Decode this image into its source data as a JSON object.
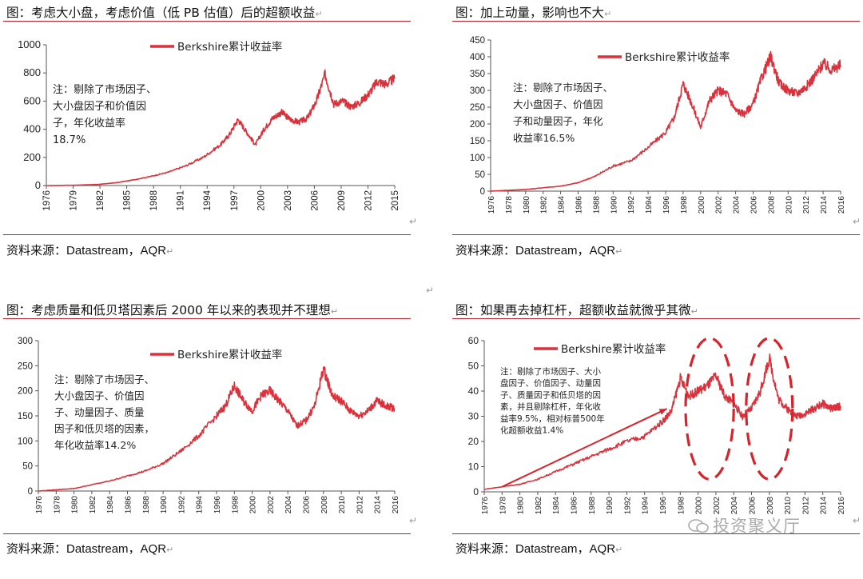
{
  "panels": [
    {
      "title": "图：考虑大小盘，考虑价值（低 PB 估值）后的超额收益",
      "legend": "Berkshire累计收益率",
      "note": [
        "注：剔除了市场因子、",
        "大小盘因子和价值因",
        "子，年化收益率",
        "18.7%"
      ],
      "source": "资料来源：Datastream，AQR"
    },
    {
      "title": "图：加上动量，影响也不大",
      "legend": "Berkshire累计收益率",
      "note": [
        "注：剔除了市场因子、",
        "大小盘因子、价值因",
        "子和动量因子，年化",
        "收益率16.5%"
      ],
      "source": "资料来源：Datastream，AQR"
    },
    {
      "title": "图：考虑质量和低贝塔因素后 2000 年以来的表现并不理想",
      "legend": "Berkshire累计收益率",
      "note": [
        "注：剔除了市场因子、",
        "大小盘因子、价值因",
        "子、动量因子、质量",
        "因子和低贝塔的因素，",
        "年化收益率14.2%"
      ],
      "source": "资料来源：Datastream，AQR"
    },
    {
      "title": "图：如果再去掉杠杆，超额收益就微乎其微",
      "legend": "Berkshire累计收益率",
      "note": [
        "注：剔除了市场因子、大小",
        "盘因子、价值因子、动量因",
        "子、质量因子和低贝塔的因",
        "素，并且剔除杠杆，年化收",
        "益率9.5%，相对标普500年",
        "化超额收益1.4%"
      ],
      "source": "资料来源：Datastream，AQR"
    }
  ],
  "watermark": "投资聚义厅",
  "colors": {
    "series": "#d9323c",
    "rule": "#b8202a",
    "annotation": "#d9232b"
  },
  "chart_data": [
    {
      "type": "line",
      "title": "图：考虑大小盘，考虑价值（低 PB 估值）后的超额收益",
      "xlabel": "",
      "ylabel": "",
      "ylim": [
        0,
        1000
      ],
      "yticks": [
        0,
        200,
        400,
        600,
        800,
        1000
      ],
      "xticks": [
        "1976",
        "1979",
        "1982",
        "1985",
        "1988",
        "1991",
        "1994",
        "1997",
        "2000",
        "2003",
        "2006",
        "2009",
        "2012",
        "2015"
      ],
      "xlim": [
        1976,
        2016
      ],
      "legend_position": "top-center",
      "series": [
        {
          "name": "Berkshire累计收益率",
          "points": [
            [
              1976,
              0
            ],
            [
              1979,
              2
            ],
            [
              1982,
              8
            ],
            [
              1984,
              20
            ],
            [
              1986,
              40
            ],
            [
              1988,
              65
            ],
            [
              1990,
              95
            ],
            [
              1992,
              140
            ],
            [
              1994,
              200
            ],
            [
              1996,
              290
            ],
            [
              1997,
              360
            ],
            [
              1998,
              470
            ],
            [
              1999,
              380
            ],
            [
              2000,
              290
            ],
            [
              2001,
              400
            ],
            [
              2002,
              480
            ],
            [
              2003,
              520
            ],
            [
              2004,
              470
            ],
            [
              2005,
              450
            ],
            [
              2006,
              480
            ],
            [
              2007,
              600
            ],
            [
              2008,
              790
            ],
            [
              2009,
              580
            ],
            [
              2010,
              600
            ],
            [
              2011,
              560
            ],
            [
              2012,
              590
            ],
            [
              2013,
              650
            ],
            [
              2014,
              740
            ],
            [
              2015,
              720
            ],
            [
              2016,
              760
            ]
          ]
        }
      ]
    },
    {
      "type": "line",
      "title": "图：加上动量，影响也不大",
      "xlabel": "",
      "ylabel": "",
      "ylim": [
        0,
        450
      ],
      "yticks": [
        0,
        50,
        100,
        150,
        200,
        250,
        300,
        350,
        400,
        450
      ],
      "xticks": [
        "1976",
        "1978",
        "1980",
        "1982",
        "1984",
        "1986",
        "1988",
        "1990",
        "1992",
        "1994",
        "1996",
        "1998",
        "2000",
        "2002",
        "2004",
        "2006",
        "2008",
        "2010",
        "2012",
        "2014",
        "2016"
      ],
      "xlim": [
        1976,
        2016
      ],
      "legend_position": "top-center",
      "series": [
        {
          "name": "Berkshire累计收益率",
          "points": [
            [
              1976,
              0
            ],
            [
              1980,
              5
            ],
            [
              1984,
              15
            ],
            [
              1986,
              25
            ],
            [
              1988,
              45
            ],
            [
              1990,
              75
            ],
            [
              1992,
              90
            ],
            [
              1994,
              130
            ],
            [
              1996,
              175
            ],
            [
              1997,
              220
            ],
            [
              1998,
              320
            ],
            [
              1999,
              260
            ],
            [
              2000,
              190
            ],
            [
              2001,
              270
            ],
            [
              2002,
              300
            ],
            [
              2003,
              290
            ],
            [
              2004,
              240
            ],
            [
              2005,
              230
            ],
            [
              2006,
              260
            ],
            [
              2007,
              340
            ],
            [
              2008,
              400
            ],
            [
              2009,
              320
            ],
            [
              2010,
              300
            ],
            [
              2011,
              290
            ],
            [
              2012,
              310
            ],
            [
              2013,
              340
            ],
            [
              2014,
              380
            ],
            [
              2015,
              360
            ],
            [
              2016,
              375
            ]
          ]
        }
      ]
    },
    {
      "type": "line",
      "title": "图：考虑质量和低贝塔因素后 2000 年以来的表现并不理想",
      "xlabel": "",
      "ylabel": "",
      "ylim": [
        0,
        300
      ],
      "yticks": [
        0,
        50,
        100,
        150,
        200,
        250,
        300
      ],
      "xticks": [
        "1976",
        "1978",
        "1980",
        "1982",
        "1984",
        "1986",
        "1988",
        "1990",
        "1992",
        "1994",
        "1996",
        "1998",
        "2000",
        "2002",
        "2004",
        "2006",
        "2008",
        "2010",
        "2012",
        "2014",
        "2016"
      ],
      "xlim": [
        1976,
        2016
      ],
      "legend_position": "top-center",
      "series": [
        {
          "name": "Berkshire累计收益率",
          "points": [
            [
              1976,
              0
            ],
            [
              1980,
              5
            ],
            [
              1984,
              20
            ],
            [
              1986,
              30
            ],
            [
              1988,
              40
            ],
            [
              1990,
              55
            ],
            [
              1992,
              80
            ],
            [
              1994,
              110
            ],
            [
              1996,
              150
            ],
            [
              1997,
              170
            ],
            [
              1998,
              210
            ],
            [
              1999,
              180
            ],
            [
              2000,
              160
            ],
            [
              2001,
              190
            ],
            [
              2002,
              200
            ],
            [
              2003,
              180
            ],
            [
              2004,
              160
            ],
            [
              2005,
              130
            ],
            [
              2006,
              140
            ],
            [
              2007,
              170
            ],
            [
              2008,
              245
            ],
            [
              2009,
              190
            ],
            [
              2010,
              180
            ],
            [
              2011,
              160
            ],
            [
              2012,
              150
            ],
            [
              2013,
              160
            ],
            [
              2014,
              180
            ],
            [
              2015,
              170
            ],
            [
              2016,
              165
            ]
          ]
        }
      ]
    },
    {
      "type": "line",
      "title": "图：如果再去掉杠杆，超额收益就微乎其微",
      "xlabel": "",
      "ylabel": "",
      "ylim": [
        0,
        60
      ],
      "yticks": [
        0,
        10,
        20,
        30,
        40,
        50,
        60
      ],
      "xticks": [
        "1976",
        "1978",
        "1980",
        "1982",
        "1984",
        "1986",
        "1988",
        "1990",
        "1992",
        "1994",
        "1996",
        "1998",
        "2000",
        "2002",
        "2004",
        "2006",
        "2008",
        "2010",
        "2012",
        "2014",
        "2016"
      ],
      "xlim": [
        1976,
        2016
      ],
      "legend_position": "top-center",
      "annotations": [
        {
          "kind": "arrow",
          "from": [
            1978,
            2
          ],
          "to": [
            1996.5,
            33
          ]
        },
        {
          "kind": "dashed-ellipse",
          "center": [
            2001.3,
            33
          ],
          "rx_years": 2.7,
          "ry_units": 28
        },
        {
          "kind": "dashed-ellipse",
          "center": [
            2008,
            33
          ],
          "rx_years": 2.6,
          "ry_units": 28
        }
      ],
      "series": [
        {
          "name": "Berkshire累计收益率",
          "points": [
            [
              1976,
              1
            ],
            [
              1978,
              2
            ],
            [
              1980,
              3
            ],
            [
              1982,
              5
            ],
            [
              1984,
              8
            ],
            [
              1986,
              11
            ],
            [
              1988,
              14
            ],
            [
              1990,
              17
            ],
            [
              1992,
              20
            ],
            [
              1994,
              22
            ],
            [
              1996,
              28
            ],
            [
              1997,
              32
            ],
            [
              1998,
              45
            ],
            [
              1999,
              38
            ],
            [
              2000,
              40
            ],
            [
              2001,
              42
            ],
            [
              2002,
              46
            ],
            [
              2003,
              38
            ],
            [
              2004,
              35
            ],
            [
              2005,
              30
            ],
            [
              2006,
              33
            ],
            [
              2007,
              40
            ],
            [
              2008,
              53
            ],
            [
              2009,
              37
            ],
            [
              2010,
              33
            ],
            [
              2011,
              30
            ],
            [
              2012,
              31
            ],
            [
              2013,
              33
            ],
            [
              2014,
              35
            ],
            [
              2015,
              33
            ],
            [
              2016,
              34
            ]
          ]
        }
      ]
    }
  ]
}
